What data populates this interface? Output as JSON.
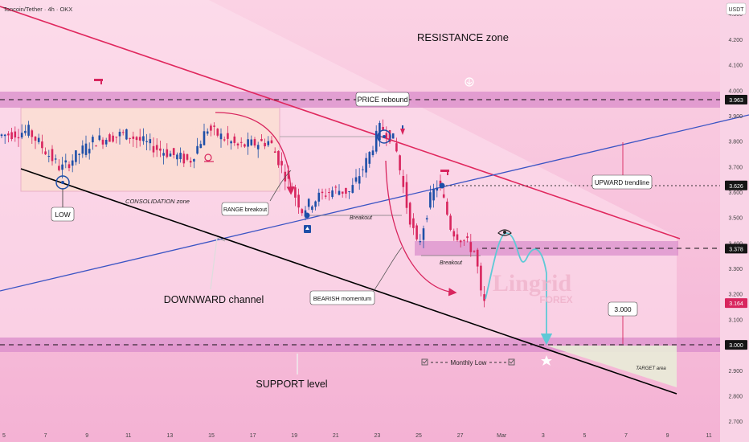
{
  "header": {
    "symbol_title": "Toncoin/Tether · 4h · OKX",
    "currency": "USDT"
  },
  "chart_data": {
    "type": "candlestick",
    "symbol": "Toncoin/Tether",
    "interval": "4h",
    "exchange": "OKX",
    "ylim": [
      2.68,
      4.36
    ],
    "y_ticks": [
      2.7,
      2.8,
      2.9,
      3.0,
      3.1,
      3.2,
      3.3,
      3.4,
      3.5,
      3.6,
      3.7,
      3.8,
      3.9,
      4.0,
      4.1,
      4.2,
      4.3
    ],
    "x_ticks": [
      "5",
      "7",
      "9",
      "11",
      "13",
      "15",
      "17",
      "19",
      "21",
      "23",
      "25",
      "27",
      "Mar",
      "3",
      "5",
      "7",
      "9",
      "11"
    ],
    "price_labels": [
      {
        "text": "3.963",
        "value": 3.963,
        "style": "dark"
      },
      {
        "text": "3.626",
        "value": 3.626,
        "style": "dark"
      },
      {
        "text": "3.378",
        "value": 3.378,
        "style": "dark"
      },
      {
        "text": "3.164",
        "value": 3.164,
        "style": "red"
      },
      {
        "text": "3.000",
        "value": 3.0,
        "style": "dark"
      }
    ],
    "horizontal_levels": [
      3.963,
      3.378,
      3.0
    ],
    "annotations": {
      "resistance_zone": "RESISTANCE zone",
      "price_rebound": "PRICE rebound",
      "upward_trendline": "UPWARD trendline",
      "low": "LOW",
      "consolidation_zone": "CONSOLIDATION zone",
      "range_breakout": "RANGE breakout",
      "breakout_1": "Breakout",
      "breakout_2": "Breakout",
      "downward_channel": "DOWNWARD channel",
      "bearish_momentum": "BEARISH momentum",
      "target_value": "3.000",
      "monthly_low": "Monthly Low",
      "target_area": "TARGET area",
      "support_level": "SUPPORT level"
    },
    "watermark": {
      "line1": "Lingrid",
      "line2": "FOREX"
    },
    "colors": {
      "up": "#1e4fa8",
      "down": "#d8255e",
      "resistance_line": "#e0285e",
      "upward_line": "#3b54c4",
      "support_line": "#000000",
      "zone": "#d98ccb",
      "projection": "#5ec9d6"
    }
  }
}
